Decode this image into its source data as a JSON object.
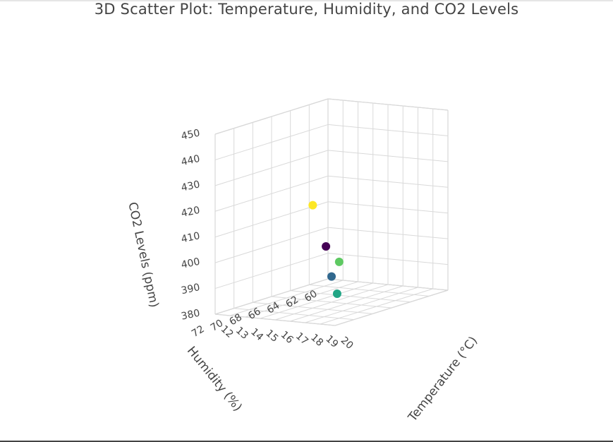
{
  "chart_data": {
    "type": "scatter",
    "title": "3D Scatter Plot: Temperature, Humidity, and CO2 Levels",
    "axes": {
      "x": {
        "label": "Temperature (°C)",
        "ticks": [
          "12",
          "13",
          "14",
          "15",
          "16",
          "17",
          "18",
          "19",
          "20"
        ],
        "range": [
          12,
          20
        ]
      },
      "y": {
        "label": "Humidity (%)",
        "ticks": [
          "60",
          "62",
          "64",
          "66",
          "68",
          "70",
          "72"
        ],
        "range": [
          60,
          72
        ]
      },
      "z": {
        "label": "CO2 Levels (ppm)",
        "ticks": [
          "380",
          "390",
          "400",
          "410",
          "420",
          "430",
          "440",
          "450"
        ],
        "range": [
          380,
          450
        ]
      }
    },
    "grid": true,
    "colorscale": "viridis",
    "points": [
      {
        "temperature": 15,
        "humidity": 65,
        "co2": 400,
        "color": "#440154"
      },
      {
        "temperature": 16,
        "humidity": 66,
        "co2": 390,
        "color": "#31688e"
      },
      {
        "temperature": 17,
        "humidity": 67,
        "co2": 385,
        "color": "#21a585"
      },
      {
        "temperature": 14,
        "humidity": 62,
        "co2": 390,
        "color": "#5ec962"
      },
      {
        "temperature": 16,
        "humidity": 68,
        "co2": 420,
        "color": "#fde725"
      }
    ]
  }
}
